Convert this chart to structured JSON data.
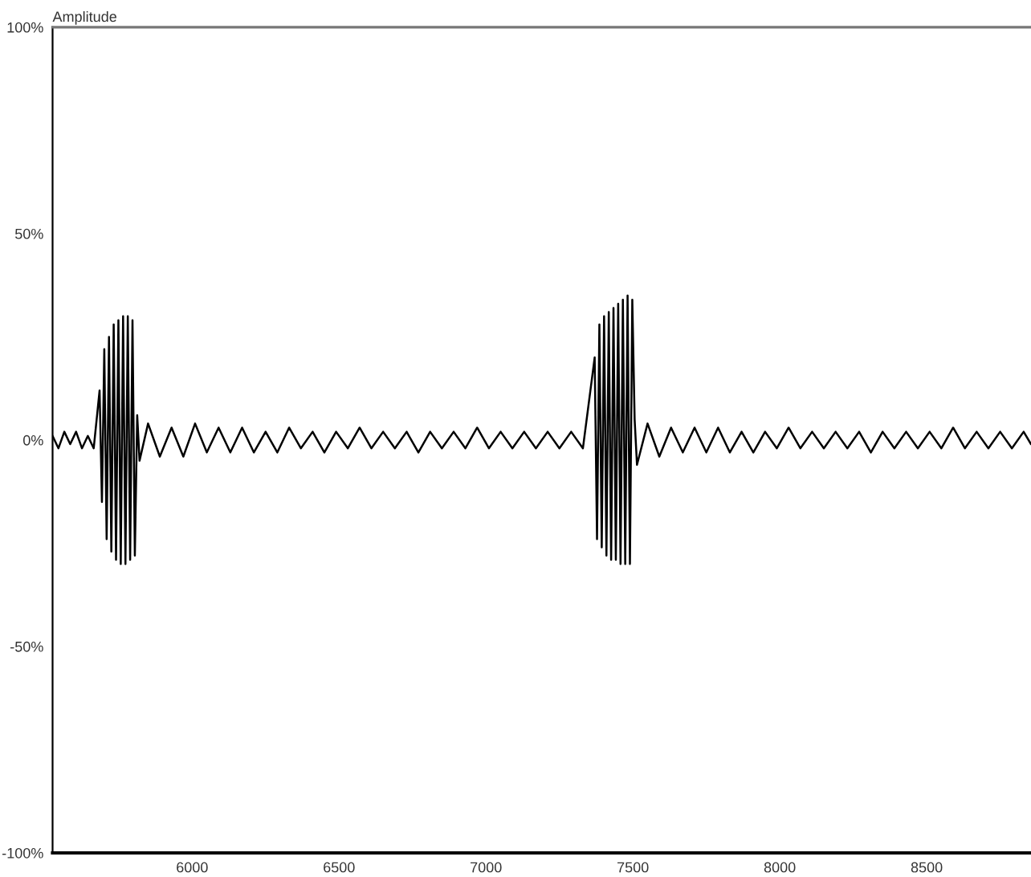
{
  "chart_data": {
    "type": "line",
    "ylabel": "Amplitude",
    "xlim": [
      5525,
      8855
    ],
    "xticks": [
      6000,
      6500,
      7000,
      7500,
      8000,
      8500
    ],
    "ylim": [
      -100,
      100
    ],
    "yticks": [
      {
        "value": -100,
        "label": "-100%"
      },
      {
        "value": -50,
        "label": "-50%"
      },
      {
        "value": 0,
        "label": "0%"
      },
      {
        "value": 50,
        "label": "50%"
      },
      {
        "value": 100,
        "label": "100%"
      }
    ],
    "grid": false,
    "marker": "none",
    "line_style": "solid",
    "series": [
      {
        "color": "#000000",
        "x": [
          5525,
          5545,
          5565,
          5585,
          5605,
          5625,
          5645,
          5665,
          5685,
          5693,
          5701,
          5709,
          5717,
          5725,
          5733,
          5741,
          5749,
          5757,
          5765,
          5773,
          5781,
          5789,
          5797,
          5805,
          5813,
          5821,
          5850,
          5890,
          5930,
          5970,
          6010,
          6050,
          6090,
          6130,
          6170,
          6210,
          6250,
          6290,
          6330,
          6370,
          6410,
          6450,
          6490,
          6530,
          6570,
          6610,
          6650,
          6690,
          6730,
          6770,
          6810,
          6850,
          6890,
          6930,
          6970,
          7010,
          7050,
          7090,
          7130,
          7170,
          7210,
          7250,
          7290,
          7330,
          7370,
          7378,
          7386,
          7394,
          7402,
          7410,
          7418,
          7426,
          7434,
          7442,
          7450,
          7458,
          7466,
          7474,
          7482,
          7490,
          7498,
          7506,
          7514,
          7550,
          7590,
          7630,
          7670,
          7710,
          7750,
          7790,
          7830,
          7870,
          7910,
          7950,
          7990,
          8030,
          8070,
          8110,
          8150,
          8190,
          8230,
          8270,
          8310,
          8350,
          8390,
          8430,
          8470,
          8510,
          8550,
          8590,
          8630,
          8670,
          8710,
          8750,
          8790,
          8830,
          8855
        ],
        "values": [
          1,
          -2,
          2,
          -1,
          2,
          -2,
          1,
          -2,
          12,
          -15,
          22,
          -24,
          25,
          -27,
          28,
          -29,
          29,
          -30,
          30,
          -30,
          30,
          -29,
          29,
          -28,
          6,
          -5,
          4,
          -4,
          3,
          -4,
          4,
          -3,
          3,
          -3,
          3,
          -3,
          2,
          -3,
          3,
          -2,
          2,
          -3,
          2,
          -2,
          3,
          -2,
          2,
          -2,
          2,
          -3,
          2,
          -2,
          2,
          -2,
          3,
          -2,
          2,
          -2,
          2,
          -2,
          2,
          -2,
          2,
          -2,
          20,
          -24,
          28,
          -26,
          30,
          -28,
          31,
          -29,
          32,
          -29,
          33,
          -30,
          34,
          -30,
          35,
          -30,
          34,
          5,
          -6,
          4,
          -4,
          3,
          -3,
          3,
          -3,
          3,
          -3,
          2,
          -3,
          2,
          -2,
          3,
          -2,
          2,
          -2,
          2,
          -2,
          2,
          -3,
          2,
          -2,
          2,
          -2,
          2,
          -2,
          3,
          -2,
          2,
          -2,
          2,
          -2,
          2,
          -1
        ]
      }
    ]
  }
}
